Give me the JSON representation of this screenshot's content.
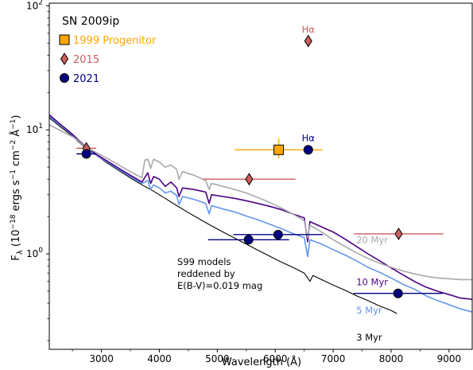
{
  "chart_data": {
    "type": "scatter",
    "title": "",
    "xlabel": "Wavelength (Å)",
    "ylabel_parts": {
      "base": "F",
      "sub": "λ",
      "unit_open": " (10",
      "unit_exp1": "−18",
      "unit_mid": " ergs s",
      "unit_exp2": "−1",
      "unit_mid2": " cm",
      "unit_exp3": "−2",
      "unit_mid3": " Å",
      "unit_exp4": "−1",
      "unit_close": ")"
    },
    "xlim": [
      2100,
      9400
    ],
    "ylim": [
      0.17,
      105
    ],
    "yscale": "log",
    "x_ticks": [
      3000,
      4000,
      5000,
      6000,
      7000,
      8000,
      9000
    ],
    "x_tick_labels": [
      "3000",
      "4000",
      "5000",
      "6000",
      "7000",
      "8000",
      "9000"
    ],
    "y_ticks": [
      1,
      10,
      100
    ],
    "y_tick_labels": [
      {
        "base": "10",
        "exp": "0"
      },
      {
        "base": "10",
        "exp": "1"
      },
      {
        "base": "10",
        "exp": "2"
      }
    ],
    "legend": {
      "title": "SN 2009ip",
      "position": "top-left",
      "entries": [
        {
          "label": "1999 Progenitor",
          "marker": "square",
          "color": "#FFA500",
          "text_color": "#FFA500"
        },
        {
          "label": "2015",
          "marker": "diamond",
          "color": "#CD5C5C",
          "text_color": "#CD5C5C"
        },
        {
          "label": "2021",
          "marker": "circle",
          "color": "#000080",
          "text_color": "#000080"
        }
      ]
    },
    "photometry": [
      {
        "name": "1999 Progenitor",
        "marker": "square",
        "color": "#FFA500",
        "edgecolor": "#000000",
        "points": [
          {
            "x": 6060,
            "y": 6.9,
            "xerr": 760,
            "yerr": [
              1.0,
              1.6
            ]
          }
        ]
      },
      {
        "name": "2015",
        "marker": "diamond",
        "color": "#CD5C5C",
        "edgecolor": "#000000",
        "points": [
          {
            "x": 2740,
            "y": 7.1,
            "xerr": 170
          },
          {
            "x": 5550,
            "y": 4.0,
            "xerr": 800
          },
          {
            "x": 8130,
            "y": 1.45,
            "xerr": 770
          },
          {
            "x": 6570,
            "y": 52,
            "xerr": 0
          }
        ]
      },
      {
        "name": "2021",
        "marker": "circle",
        "color": "#000080",
        "edgecolor": "#000000",
        "points": [
          {
            "x": 2740,
            "y": 6.4,
            "xerr": 170
          },
          {
            "x": 5540,
            "y": 1.3,
            "xerr": 700
          },
          {
            "x": 6050,
            "y": 1.43,
            "xerr": 770
          },
          {
            "x": 8120,
            "y": 0.48,
            "xerr": 770
          },
          {
            "x": 6570,
            "y": 6.9,
            "xerr": 0
          }
        ]
      }
    ],
    "models": [
      {
        "name": "3 Myr",
        "color": "#000000",
        "points": [
          [
            2100,
            12.5
          ],
          [
            2300,
            10.5
          ],
          [
            2500,
            8.9
          ],
          [
            2700,
            7.3
          ],
          [
            2900,
            6.3
          ],
          [
            3100,
            5.4
          ],
          [
            3300,
            4.7
          ],
          [
            3500,
            4.1
          ],
          [
            3700,
            3.6
          ],
          [
            3900,
            3.2
          ],
          [
            4100,
            2.8
          ],
          [
            4300,
            2.45
          ],
          [
            4500,
            2.15
          ],
          [
            4700,
            1.9
          ],
          [
            4900,
            1.68
          ],
          [
            5100,
            1.5
          ],
          [
            5300,
            1.34
          ],
          [
            5500,
            1.2
          ],
          [
            5700,
            1.07
          ],
          [
            5900,
            0.96
          ],
          [
            6100,
            0.86
          ],
          [
            6300,
            0.78
          ],
          [
            6500,
            0.7
          ],
          [
            6600,
            0.6
          ],
          [
            6650,
            0.67
          ],
          [
            6800,
            0.62
          ],
          [
            7000,
            0.56
          ],
          [
            7200,
            0.51
          ],
          [
            7400,
            0.46
          ],
          [
            7600,
            0.42
          ],
          [
            7800,
            0.38
          ],
          [
            8000,
            0.35
          ],
          [
            8100,
            0.33
          ]
        ]
      },
      {
        "name": "5 Myr",
        "color": "#6495ED",
        "points": [
          [
            2100,
            12.8
          ],
          [
            2300,
            10.8
          ],
          [
            2500,
            9.1
          ],
          [
            2700,
            7.4
          ],
          [
            2900,
            6.3
          ],
          [
            3100,
            5.5
          ],
          [
            3300,
            4.8
          ],
          [
            3500,
            4.2
          ],
          [
            3700,
            3.7
          ],
          [
            3800,
            3.9
          ],
          [
            3850,
            3.3
          ],
          [
            3900,
            3.6
          ],
          [
            4000,
            3.4
          ],
          [
            4100,
            3.1
          ],
          [
            4200,
            3.2
          ],
          [
            4300,
            2.95
          ],
          [
            4340,
            2.5
          ],
          [
            4400,
            2.9
          ],
          [
            4600,
            2.75
          ],
          [
            4700,
            2.65
          ],
          [
            4800,
            2.55
          ],
          [
            4860,
            2.1
          ],
          [
            4900,
            2.45
          ],
          [
            5100,
            2.3
          ],
          [
            5300,
            2.18
          ],
          [
            5500,
            2.02
          ],
          [
            5700,
            1.88
          ],
          [
            5900,
            1.74
          ],
          [
            6100,
            1.6
          ],
          [
            6300,
            1.46
          ],
          [
            6500,
            1.35
          ],
          [
            6560,
            0.95
          ],
          [
            6600,
            1.3
          ],
          [
            6800,
            1.2
          ],
          [
            7000,
            1.08
          ],
          [
            7200,
            0.98
          ],
          [
            7400,
            0.88
          ],
          [
            7600,
            0.78
          ],
          [
            7800,
            0.71
          ],
          [
            8000,
            0.64
          ],
          [
            8200,
            0.57
          ],
          [
            8400,
            0.52
          ],
          [
            8600,
            0.46
          ],
          [
            8800,
            0.42
          ],
          [
            9000,
            0.39
          ],
          [
            9200,
            0.36
          ],
          [
            9400,
            0.34
          ]
        ]
      },
      {
        "name": "10 Myr",
        "color": "#4B0082",
        "points": [
          [
            2100,
            13.2
          ],
          [
            2300,
            11.0
          ],
          [
            2500,
            9.2
          ],
          [
            2700,
            7.5
          ],
          [
            2900,
            6.4
          ],
          [
            3100,
            5.6
          ],
          [
            3300,
            4.9
          ],
          [
            3500,
            4.3
          ],
          [
            3700,
            3.8
          ],
          [
            3800,
            4.5
          ],
          [
            3850,
            3.7
          ],
          [
            3900,
            4.2
          ],
          [
            4000,
            4.0
          ],
          [
            4100,
            3.5
          ],
          [
            4200,
            3.8
          ],
          [
            4300,
            3.4
          ],
          [
            4340,
            2.9
          ],
          [
            4400,
            3.4
          ],
          [
            4600,
            3.3
          ],
          [
            4800,
            3.15
          ],
          [
            4860,
            2.55
          ],
          [
            4900,
            3.0
          ],
          [
            5100,
            2.9
          ],
          [
            5300,
            2.8
          ],
          [
            5500,
            2.68
          ],
          [
            5700,
            2.55
          ],
          [
            5900,
            2.42
          ],
          [
            6100,
            2.28
          ],
          [
            6300,
            2.1
          ],
          [
            6500,
            1.95
          ],
          [
            6560,
            1.25
          ],
          [
            6600,
            1.82
          ],
          [
            6800,
            1.65
          ],
          [
            7000,
            1.5
          ],
          [
            7200,
            1.32
          ],
          [
            7400,
            1.15
          ],
          [
            7600,
            1.0
          ],
          [
            7800,
            0.88
          ],
          [
            8000,
            0.77
          ],
          [
            8200,
            0.68
          ],
          [
            8400,
            0.6
          ],
          [
            8600,
            0.54
          ],
          [
            8800,
            0.5
          ],
          [
            9000,
            0.47
          ],
          [
            9200,
            0.44
          ],
          [
            9400,
            0.43
          ]
        ]
      },
      {
        "name": "20 Myr",
        "color": "#A9A9A9",
        "points": [
          [
            2100,
            11.0
          ],
          [
            2300,
            9.8
          ],
          [
            2500,
            8.8
          ],
          [
            2600,
            8.2
          ],
          [
            2700,
            7.4
          ],
          [
            2900,
            6.6
          ],
          [
            3100,
            5.9
          ],
          [
            3300,
            5.2
          ],
          [
            3500,
            4.6
          ],
          [
            3700,
            4.1
          ],
          [
            3750,
            5.7
          ],
          [
            3800,
            5.8
          ],
          [
            3850,
            4.9
          ],
          [
            3900,
            5.8
          ],
          [
            4000,
            5.5
          ],
          [
            4100,
            5.0
          ],
          [
            4200,
            5.2
          ],
          [
            4300,
            4.8
          ],
          [
            4340,
            4.0
          ],
          [
            4400,
            4.6
          ],
          [
            4600,
            4.3
          ],
          [
            4800,
            3.9
          ],
          [
            4860,
            3.3
          ],
          [
            4900,
            3.7
          ],
          [
            5100,
            3.5
          ],
          [
            5300,
            3.3
          ],
          [
            5500,
            3.1
          ],
          [
            5700,
            2.85
          ],
          [
            5900,
            2.6
          ],
          [
            6100,
            2.35
          ],
          [
            6300,
            2.1
          ],
          [
            6500,
            1.85
          ],
          [
            6560,
            1.35
          ],
          [
            6600,
            1.7
          ],
          [
            6800,
            1.5
          ],
          [
            7000,
            1.3
          ],
          [
            7200,
            1.15
          ],
          [
            7400,
            1.02
          ],
          [
            7600,
            0.92
          ],
          [
            7800,
            0.84
          ],
          [
            8000,
            0.78
          ],
          [
            8200,
            0.73
          ],
          [
            8400,
            0.69
          ],
          [
            8600,
            0.66
          ],
          [
            8800,
            0.64
          ],
          [
            9000,
            0.63
          ],
          [
            9200,
            0.62
          ],
          [
            9400,
            0.62
          ]
        ]
      }
    ],
    "annotations": [
      {
        "text": "Hα",
        "x": 6570,
        "y": 61,
        "color": "#CD5C5C"
      },
      {
        "text": "Hα",
        "x": 6570,
        "y": 8.1,
        "color": "#000080"
      },
      {
        "text": "20 Myr",
        "x": 7400,
        "y": 1.22,
        "color": "#A9A9A9"
      },
      {
        "text": "10 Myr",
        "x": 7400,
        "y": 0.56,
        "color": "#4B0082"
      },
      {
        "text": "5 Myr",
        "x": 7400,
        "y": 0.33,
        "color": "#6495ED"
      },
      {
        "text": "3 Myr",
        "x": 7400,
        "y": 0.2,
        "color": "#000000"
      }
    ],
    "model_note": {
      "lines": [
        "S99 models",
        "reddened by",
        "E(B-V)=0.019 mag"
      ],
      "x": 4200,
      "y": 0.7,
      "color": "#000000"
    }
  }
}
